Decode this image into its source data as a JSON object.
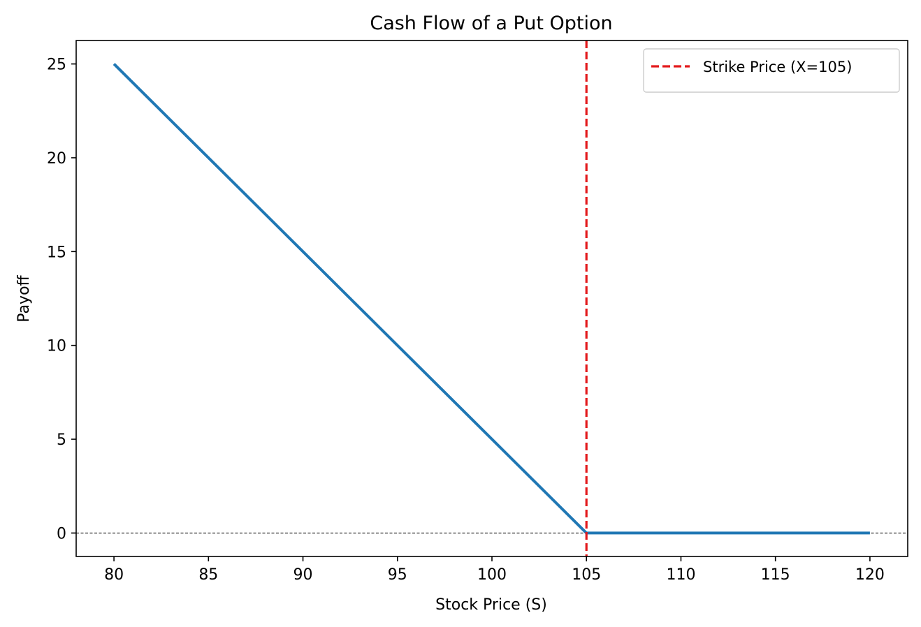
{
  "chart_data": {
    "type": "line",
    "title": "Cash Flow of a Put Option",
    "xlabel": "Stock Price (S)",
    "ylabel": "Payoff",
    "xlim": [
      78,
      122
    ],
    "ylim": [
      -1.25,
      26.25
    ],
    "x_ticks": [
      80,
      85,
      90,
      95,
      100,
      105,
      110,
      115,
      120
    ],
    "y_ticks": [
      0,
      5,
      10,
      15,
      20,
      25
    ],
    "grid": false,
    "legend_position": "top-right",
    "series": [
      {
        "color": "#1f77b4",
        "style": "solid",
        "x": [
          80,
          105,
          120
        ],
        "y": [
          25,
          0,
          0
        ]
      }
    ],
    "vertical_lines": [
      {
        "x": 105,
        "label": "Strike Price (X=105)",
        "color": "#e31a1c",
        "style": "dashed"
      }
    ],
    "horizontal_lines": [
      {
        "y": 0,
        "color": "#000000",
        "style": "dashed"
      }
    ]
  }
}
